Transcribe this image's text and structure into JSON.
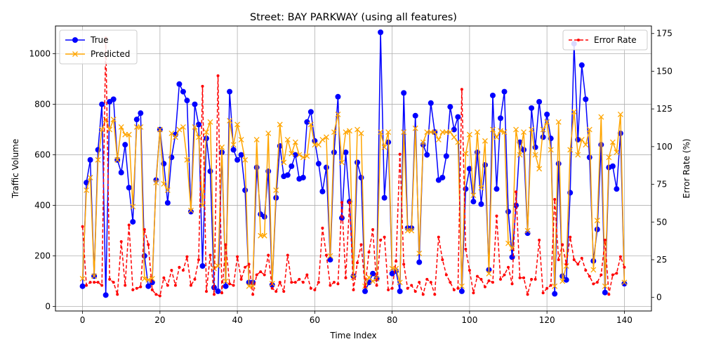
{
  "chart_data": {
    "type": "line",
    "title": "Street: BAY PARKWAY (using all features)",
    "xlabel": "Time Index",
    "ylabel": "Traffic Volume",
    "y2label": "Error Rate (%)",
    "xlim": [
      -7,
      147
    ],
    "ylim": [
      -18,
      1110
    ],
    "y2lim": [
      -9,
      180
    ],
    "xticks": [
      0,
      20,
      40,
      60,
      80,
      100,
      120,
      140
    ],
    "yticks": [
      0,
      200,
      400,
      600,
      800,
      1000
    ],
    "y2ticks": [
      0,
      25,
      50,
      75,
      100,
      125,
      150,
      175
    ],
    "grid": true,
    "legend_left": "upper left",
    "legend_right": "upper right",
    "colors": {
      "true": "#0000ff",
      "predicted": "#ffa500",
      "error": "#ff0000"
    },
    "series": [
      {
        "name": "True",
        "axis": "left",
        "marker": "circle",
        "values": [
          80,
          490,
          580,
          120,
          620,
          800,
          45,
          810,
          820,
          580,
          530,
          640,
          470,
          335,
          740,
          765,
          200,
          80,
          95,
          500,
          700,
          565,
          410,
          590,
          680,
          880,
          850,
          815,
          375,
          800,
          720,
          160,
          665,
          535,
          75,
          60,
          610,
          80,
          850,
          620,
          580,
          600,
          460,
          95,
          95,
          550,
          365,
          355,
          535,
          85,
          430,
          635,
          515,
          520,
          555,
          600,
          505,
          510,
          730,
          770,
          655,
          565,
          455,
          550,
          185,
          610,
          830,
          350,
          610,
          415,
          120,
          570,
          510,
          60,
          95,
          130,
          110,
          1085,
          430,
          650,
          130,
          140,
          60,
          845,
          310,
          310,
          755,
          175,
          640,
          600,
          805,
          690,
          500,
          510,
          595,
          790,
          700,
          750,
          60,
          465,
          545,
          415,
          610,
          405,
          560,
          145,
          835,
          465,
          745,
          850,
          375,
          195,
          400,
          650,
          620,
          290,
          785,
          630,
          810,
          670,
          760,
          665,
          50,
          565,
          120,
          105,
          450,
          1040,
          660,
          955,
          820,
          590,
          180,
          305,
          640,
          55,
          550,
          555,
          465,
          685,
          90
        ]
      },
      {
        "name": "Predicted",
        "axis": "left",
        "marker": "x",
        "values": [
          110,
          460,
          510,
          120,
          580,
          700,
          740,
          700,
          740,
          580,
          710,
          680,
          680,
          395,
          710,
          710,
          110,
          105,
          110,
          490,
          700,
          485,
          460,
          685,
          670,
          700,
          710,
          580,
          380,
          710,
          670,
          400,
          690,
          730,
          150,
          160,
          630,
          100,
          735,
          640,
          720,
          660,
          580,
          80,
          80,
          660,
          280,
          280,
          685,
          90,
          460,
          720,
          570,
          660,
          605,
          650,
          600,
          590,
          595,
          720,
          640,
          640,
          660,
          670,
          200,
          690,
          760,
          570,
          690,
          695,
          115,
          700,
          685,
          80,
          115,
          100,
          110,
          690,
          630,
          690,
          150,
          150,
          95,
          690,
          300,
          300,
          705,
          210,
          650,
          690,
          690,
          690,
          660,
          690,
          690,
          690,
          670,
          650,
          80,
          605,
          680,
          440,
          690,
          470,
          655,
          130,
          700,
          670,
          695,
          690,
          250,
          230,
          700,
          600,
          690,
          300,
          700,
          600,
          545,
          700,
          730,
          620,
          80,
          730,
          100,
          160,
          620,
          770,
          600,
          660,
          640,
          700,
          145,
          340,
          750,
          80,
          590,
          650,
          610,
          760,
          95
        ]
      },
      {
        "name": "Error Rate",
        "axis": "right",
        "marker": "dot",
        "values": [
          47,
          8,
          10,
          10,
          10,
          8,
          172,
          12,
          10,
          2,
          37,
          8,
          48,
          5,
          6,
          7,
          45,
          35,
          5,
          2,
          1,
          13,
          8,
          18,
          8,
          20,
          18,
          27,
          8,
          12,
          25,
          140,
          4,
          28,
          2,
          147,
          3,
          35,
          9,
          8,
          27,
          12,
          20,
          22,
          2,
          15,
          17,
          15,
          28,
          6,
          4,
          10,
          4,
          28,
          10,
          10,
          12,
          10,
          15,
          6,
          5,
          10,
          46,
          28,
          8,
          10,
          9,
          63,
          13,
          63,
          5,
          23,
          35,
          7,
          30,
          45,
          8,
          38,
          40,
          5,
          6,
          24,
          95,
          22,
          6,
          8,
          4,
          10,
          2,
          12,
          10,
          2,
          40,
          25,
          15,
          10,
          5,
          6,
          138,
          32,
          18,
          3,
          14,
          12,
          7,
          11,
          10,
          54,
          12,
          15,
          20,
          9,
          70,
          13,
          13,
          2,
          12,
          12,
          38,
          3,
          6,
          8,
          65,
          25,
          35,
          22,
          40,
          25,
          22,
          26,
          18,
          14,
          9,
          10,
          15,
          38,
          2,
          15,
          16,
          27,
          20
        ]
      }
    ]
  }
}
